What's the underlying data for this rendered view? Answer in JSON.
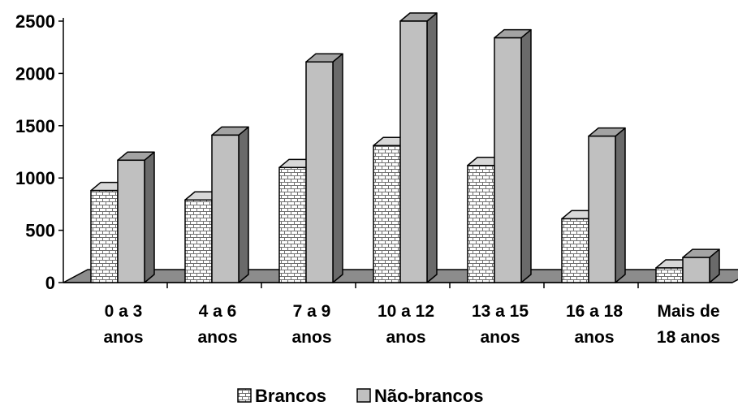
{
  "chart_data": {
    "type": "bar",
    "style": "3d-clustered-column",
    "categories": [
      [
        "0 a 3",
        "anos"
      ],
      [
        "4 a 6",
        "anos"
      ],
      [
        "7 a 9",
        "anos"
      ],
      [
        "10 a 12",
        "anos"
      ],
      [
        "13 a 15",
        "anos"
      ],
      [
        "16 a 18",
        "anos"
      ],
      [
        "Mais de",
        "18 anos"
      ]
    ],
    "series": [
      {
        "name": "Brancos",
        "values": [
          880,
          790,
          1100,
          1310,
          1120,
          610,
          140
        ],
        "pattern": "brick",
        "color": "#ffffff"
      },
      {
        "name": "Não-brancos",
        "values": [
          1170,
          1410,
          2110,
          2500,
          2340,
          1400,
          240
        ],
        "pattern": "solid",
        "color": "#c0c0c0"
      }
    ],
    "title": "",
    "xlabel": "",
    "ylabel": "",
    "ylim": [
      0,
      2500
    ],
    "yticks": [
      "0",
      "500",
      "1000",
      "1500",
      "2000",
      "2500"
    ],
    "grid": false,
    "legend": "bottom",
    "floor_color": "#8c8c8c",
    "outline_color": "#000000"
  }
}
